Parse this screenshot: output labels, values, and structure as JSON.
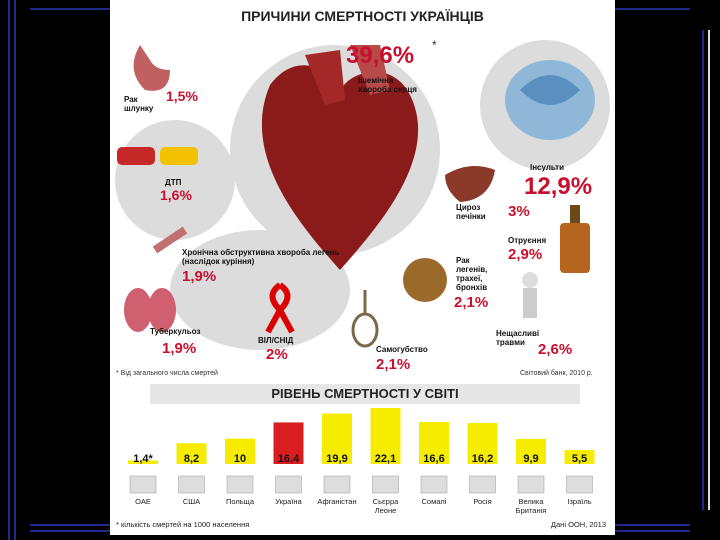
{
  "poster": {
    "title": "ПРИЧИНИ СМЕРТНОСТІ УКРАЇНЦІВ",
    "causes": {
      "ihd": {
        "label": "Ішемічна хвороба серця",
        "pct": "39,6%",
        "star": "*"
      },
      "stroke": {
        "label": "Інсульти",
        "pct": "12,9%"
      },
      "cirrhosis": {
        "label": "Цироз печінки",
        "pct": "3%"
      },
      "poison": {
        "label": "Отруєння",
        "pct": "2,9%"
      },
      "lung_cancer": {
        "label": "Рак легенів, трахеї, бронхів",
        "pct": "2,1%"
      },
      "accidents": {
        "label": "Нещасливі травми",
        "pct": "2,6%"
      },
      "suicide": {
        "label": "Самогубство",
        "pct": "2,1%"
      },
      "hiv": {
        "label": "ВІЛ/СНІД",
        "pct": "2%"
      },
      "tb": {
        "label": "Туберкульоз",
        "pct": "1,9%"
      },
      "copd": {
        "label": "Хронічна обструктивна хвороба легень (наслідок куріння)",
        "pct": "1,9%"
      },
      "traffic": {
        "label": "ДТП",
        "pct": "1,6%"
      },
      "stomach": {
        "label": "Рак шлунку",
        "pct": "1,5%"
      }
    },
    "footnote": "* Від загального числа смертей",
    "source": "Світовий банк, 2010 р."
  },
  "chart_data": {
    "type": "bar",
    "title": "РІВЕНЬ СМЕРТНОСТІ У СВІТІ",
    "categories": [
      "ОАЕ",
      "США",
      "Польща",
      "Україна",
      "Афганістан",
      "Сьєрра Леоне",
      "Сомалі",
      "Росія",
      "Велика Британія",
      "Ізраїль"
    ],
    "value_labels": [
      "1,4*",
      "8,2",
      "10",
      "16,4",
      "19,9",
      "22,1",
      "16,6",
      "16,2",
      "9,9",
      "5,5"
    ],
    "values": [
      1.4,
      8.2,
      10,
      16.4,
      19.9,
      22.1,
      16.6,
      16.2,
      9.9,
      5.5
    ],
    "highlight": "Україна",
    "colors": {
      "bar": "#f5ec00",
      "highlight": "#d81e1e"
    },
    "footnote": "* кількість смертей на 1000 населення",
    "source": "Дані ООН, 2013"
  }
}
